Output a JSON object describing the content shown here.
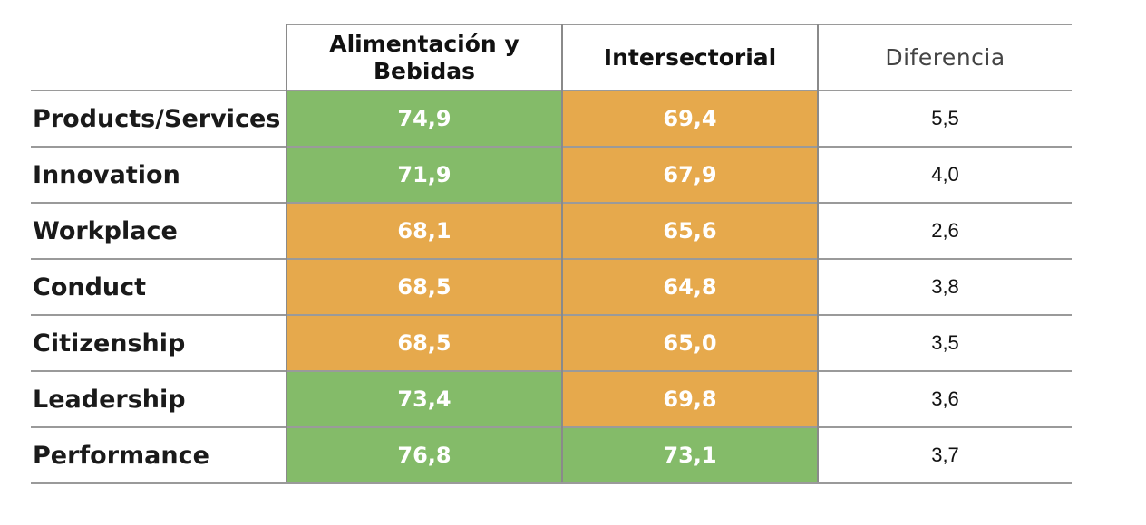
{
  "colors": {
    "high": "#84bb69",
    "mid": "#e6a94c"
  },
  "chart_data": {
    "type": "table",
    "columns": [
      "Alimentación y Bebidas",
      "Intersectorial",
      "Diferencia"
    ],
    "rows": [
      {
        "label": "Products/Services",
        "a": "74,9",
        "b": "69,4",
        "diff": "5,5",
        "a_level": "high",
        "b_level": "mid"
      },
      {
        "label": "Innovation",
        "a": "71,9",
        "b": "67,9",
        "diff": "4,0",
        "a_level": "high",
        "b_level": "mid"
      },
      {
        "label": "Workplace",
        "a": "68,1",
        "b": "65,6",
        "diff": "2,6",
        "a_level": "mid",
        "b_level": "mid"
      },
      {
        "label": "Conduct",
        "a": "68,5",
        "b": "64,8",
        "diff": "3,8",
        "a_level": "mid",
        "b_level": "mid"
      },
      {
        "label": "Citizenship",
        "a": "68,5",
        "b": "65,0",
        "diff": "3,5",
        "a_level": "mid",
        "b_level": "mid"
      },
      {
        "label": "Leadership",
        "a": "73,4",
        "b": "69,8",
        "diff": "3,6",
        "a_level": "high",
        "b_level": "mid"
      },
      {
        "label": "Performance",
        "a": "76,8",
        "b": "73,1",
        "diff": "3,7",
        "a_level": "high",
        "b_level": "high"
      }
    ]
  }
}
